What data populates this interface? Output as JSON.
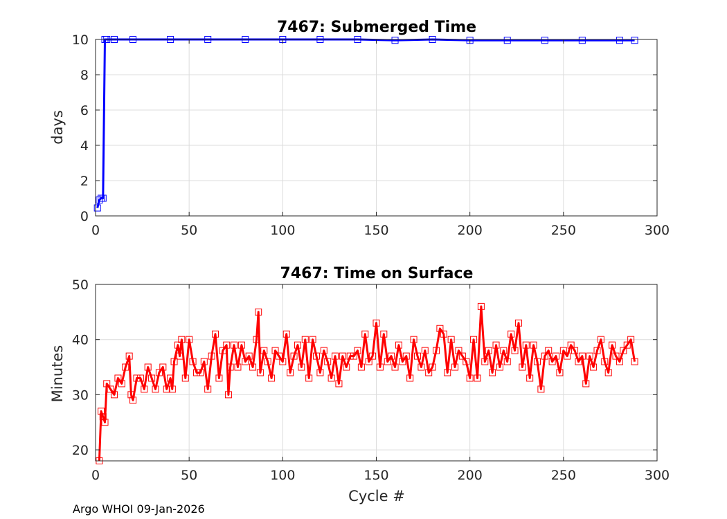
{
  "footer": "Argo WHOI 09-Jan-2026",
  "chart_data": [
    {
      "type": "line",
      "title": "7467: Submerged Time",
      "xlabel": "",
      "ylabel": "days",
      "xlim": [
        0,
        300
      ],
      "ylim": [
        0,
        10
      ],
      "xticks": [
        "0",
        "50",
        "100",
        "150",
        "200",
        "250",
        "300"
      ],
      "yticks": [
        "0",
        "2",
        "4",
        "6",
        "8",
        "10"
      ],
      "grid": true,
      "color": "#0000ff",
      "marker": "square",
      "series": [
        {
          "x": [
            1,
            2,
            3,
            4,
            5,
            6,
            10,
            20,
            40,
            60,
            80,
            100,
            120,
            140,
            160,
            180,
            200,
            220,
            240,
            260,
            280,
            288
          ],
          "y": [
            0.45,
            0.9,
            1.0,
            1.0,
            10.0,
            10.0,
            10.0,
            10.0,
            10.0,
            10.0,
            10.0,
            10.0,
            10.0,
            10.0,
            9.95,
            10.0,
            9.95,
            9.95,
            9.95,
            9.95,
            9.95,
            9.95
          ]
        }
      ]
    },
    {
      "type": "line",
      "title": "7467: Time on Surface",
      "xlabel": "Cycle #",
      "ylabel": "Minutes",
      "xlim": [
        0,
        300
      ],
      "ylim": [
        18,
        50
      ],
      "xticks": [
        "0",
        "50",
        "100",
        "150",
        "200",
        "250",
        "300"
      ],
      "yticks": [
        "20",
        "30",
        "40",
        "50"
      ],
      "grid": true,
      "color": "#ff0000",
      "marker": "square",
      "series": [
        {
          "x": [
            2,
            3,
            4,
            5,
            6,
            8,
            10,
            12,
            14,
            16,
            18,
            19,
            20,
            22,
            24,
            26,
            28,
            30,
            32,
            34,
            36,
            38,
            40,
            41,
            42,
            44,
            45,
            46,
            48,
            50,
            52,
            54,
            56,
            58,
            60,
            62,
            64,
            66,
            68,
            70,
            71,
            72,
            74,
            76,
            78,
            80,
            82,
            84,
            86,
            87,
            88,
            90,
            92,
            94,
            96,
            98,
            100,
            102,
            104,
            106,
            108,
            110,
            112,
            114,
            116,
            118,
            120,
            122,
            124,
            126,
            128,
            130,
            132,
            134,
            136,
            138,
            140,
            142,
            144,
            146,
            148,
            150,
            152,
            154,
            156,
            158,
            160,
            162,
            164,
            166,
            168,
            170,
            172,
            174,
            176,
            178,
            180,
            182,
            184,
            186,
            188,
            190,
            192,
            194,
            196,
            198,
            200,
            202,
            204,
            206,
            208,
            210,
            212,
            214,
            216,
            218,
            220,
            222,
            224,
            226,
            228,
            230,
            232,
            234,
            236,
            238,
            240,
            242,
            244,
            246,
            248,
            250,
            252,
            254,
            256,
            258,
            260,
            262,
            264,
            266,
            268,
            270,
            272,
            274,
            276,
            278,
            280,
            282,
            284,
            286,
            288
          ],
          "y": [
            18,
            27,
            26,
            25,
            32,
            31,
            30,
            33,
            32,
            35,
            37,
            30,
            29,
            33,
            33,
            31,
            35,
            33,
            31,
            34,
            35,
            31,
            33,
            31,
            36,
            39,
            37,
            40,
            33,
            40,
            36,
            34,
            34,
            36,
            31,
            37,
            41,
            33,
            38,
            39,
            30,
            35,
            39,
            35,
            39,
            36,
            37,
            35,
            40,
            45,
            34,
            38,
            36,
            33,
            38,
            37,
            36,
            41,
            34,
            37,
            39,
            35,
            40,
            33,
            40,
            37,
            34,
            38,
            36,
            33,
            37,
            32,
            37,
            35,
            37,
            37,
            38,
            35,
            41,
            36,
            37,
            43,
            35,
            41,
            36,
            37,
            35,
            39,
            36,
            37,
            33,
            40,
            37,
            35,
            38,
            34,
            35,
            38,
            42,
            41,
            34,
            40,
            35,
            38,
            37,
            36,
            33,
            40,
            33,
            46,
            36,
            38,
            34,
            39,
            35,
            38,
            36,
            41,
            38,
            43,
            35,
            39,
            33,
            39,
            36,
            31,
            37,
            38,
            36,
            37,
            34,
            38,
            37,
            39,
            38,
            36,
            37,
            32,
            37,
            35,
            38,
            40,
            36,
            34,
            39,
            37,
            36,
            38,
            39,
            40,
            36
          ]
        }
      ]
    }
  ]
}
